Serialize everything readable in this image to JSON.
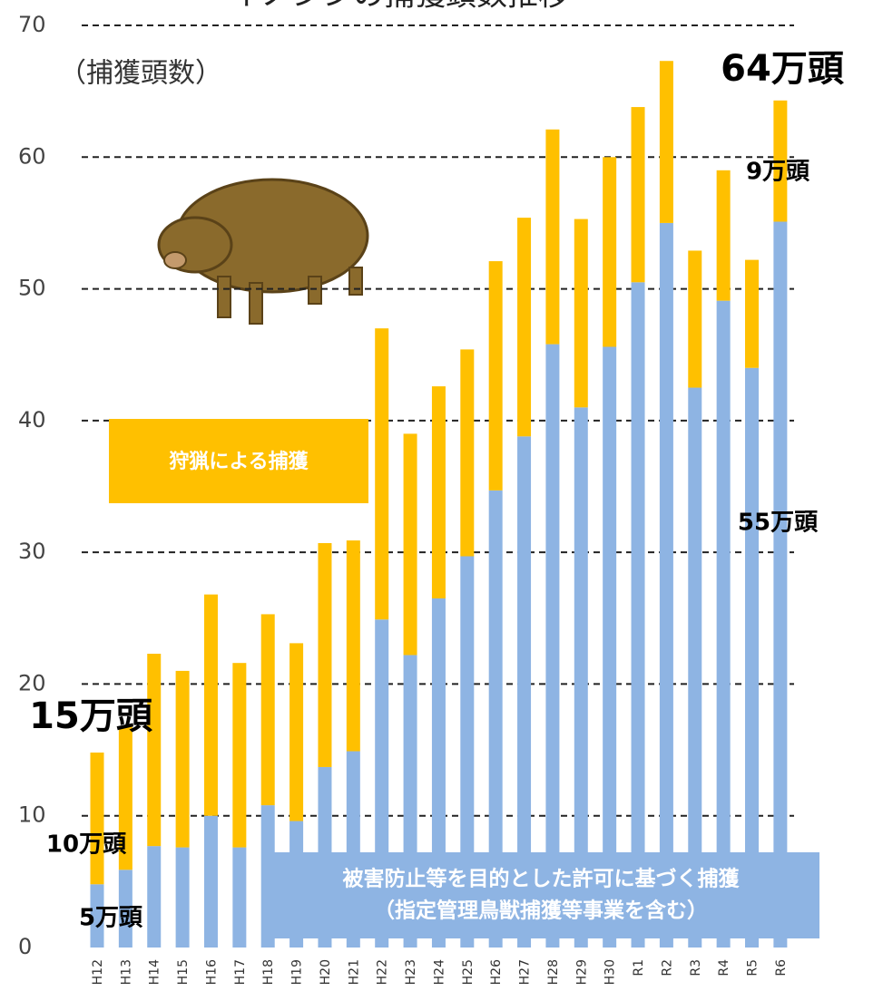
{
  "chart_data": {
    "type": "stacked-bar",
    "title": "イノシシの捕獲頭数推移",
    "y_label": "（捕獲頭数）",
    "categories": [
      "H12",
      "H13",
      "H14",
      "H15",
      "H16",
      "H17",
      "H18",
      "H19",
      "H20",
      "H21",
      "H22",
      "H23",
      "H24",
      "H25",
      "H26",
      "H27",
      "H28",
      "H29",
      "H30",
      "R1",
      "R2",
      "R3",
      "R4",
      "R5",
      "R6"
    ],
    "series": [
      {
        "name": "被害防止等を目的とした許可に基づく捕獲",
        "note": "（指定管理鳥獣捕獲等事業を含む）",
        "color": "#8eb4e3",
        "values": [
          4.8,
          5.9,
          7.7,
          7.6,
          10.0,
          7.6,
          10.8,
          9.6,
          13.7,
          14.9,
          24.9,
          22.2,
          26.5,
          29.7,
          34.7,
          38.8,
          45.8,
          41.0,
          45.6,
          50.5,
          55.0,
          42.5,
          49.1,
          44.0,
          55.1
        ]
      },
      {
        "name": "狩猟による捕獲",
        "color": "#ffc000",
        "values": [
          10.0,
          10.9,
          14.6,
          13.4,
          16.8,
          14.0,
          14.5,
          13.5,
          17.0,
          16.0,
          22.1,
          16.8,
          16.1,
          15.7,
          17.4,
          16.6,
          16.3,
          14.3,
          14.4,
          13.3,
          12.3,
          10.4,
          9.9,
          8.2,
          9.2
        ]
      }
    ],
    "annotations": [
      "64万頭",
      "9万頭",
      "55万頭",
      "15万頭",
      "10万頭",
      "5万頭"
    ],
    "ylim": [
      0,
      70
    ],
    "yticks": [
      0,
      10,
      20,
      30,
      40,
      50,
      60,
      70
    ],
    "grid": true
  }
}
